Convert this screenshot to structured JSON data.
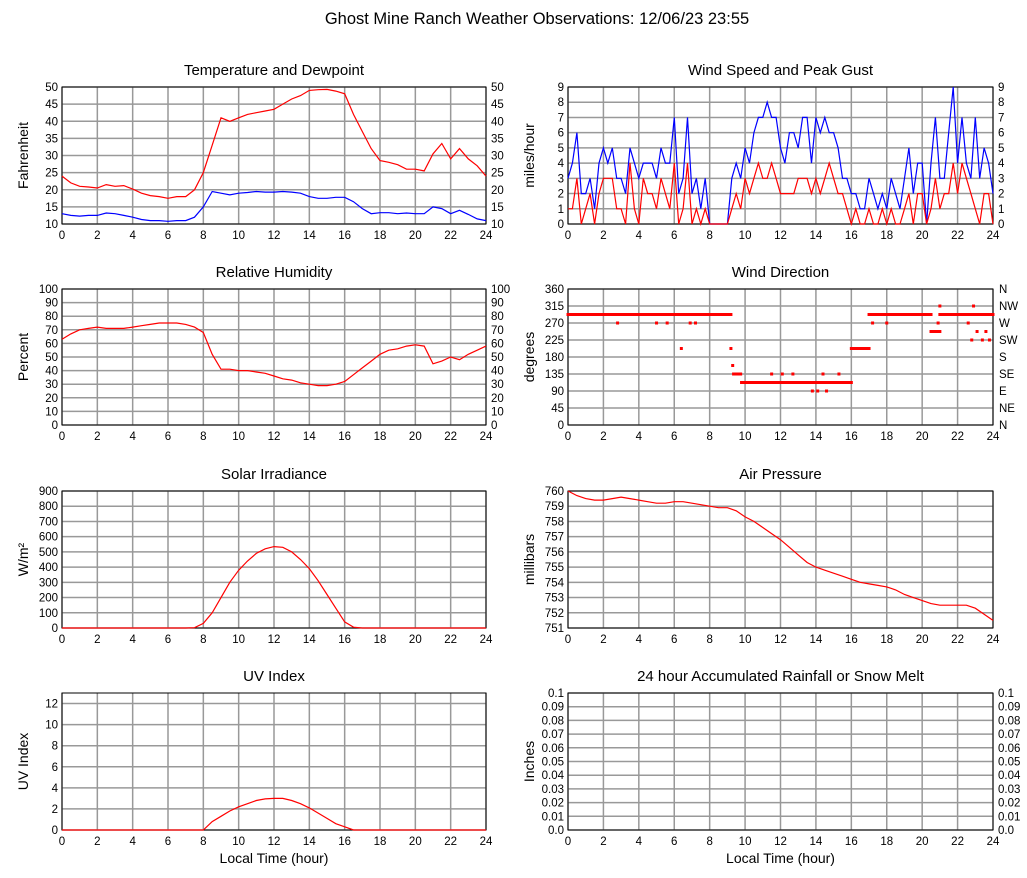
{
  "title": "Ghost Mine Ranch Weather Observations: 12/06/23 23:55",
  "xlabel": "Local Time (hour)",
  "chart_data": [
    {
      "type": "line",
      "title": "Temperature and Dewpoint",
      "ylabel": "Fahrenheit",
      "xlim": [
        0,
        24
      ],
      "xticks": [
        0,
        2,
        4,
        6,
        8,
        10,
        12,
        14,
        16,
        18,
        20,
        22,
        24
      ],
      "ylim": [
        10,
        50
      ],
      "yticks": [
        10,
        15,
        20,
        25,
        30,
        35,
        40,
        45,
        50
      ],
      "right_axis": true,
      "grid": true,
      "series": [
        {
          "name": "Temperature",
          "color": "#ff0000",
          "step": 0.5,
          "values": [
            24,
            22,
            21,
            20.8,
            20.5,
            21.5,
            21,
            21.2,
            20.2,
            19,
            18.3,
            18,
            17.5,
            18,
            18,
            20,
            25,
            33,
            41,
            40,
            41,
            42,
            42.5,
            43,
            43.5,
            45,
            46.5,
            47.5,
            49,
            49.2,
            49.3,
            48.8,
            48,
            42,
            37,
            32,
            28.5,
            28,
            27.3,
            26,
            26,
            25.5,
            30.5,
            33.5,
            29,
            32,
            29,
            27,
            24
          ]
        },
        {
          "name": "Dewpoint",
          "color": "#0000ff",
          "step": 0.5,
          "values": [
            13,
            12.5,
            12.3,
            12.5,
            12.5,
            13.2,
            13,
            12.5,
            12,
            11.3,
            11,
            11,
            10.8,
            11,
            11,
            12,
            15,
            19.5,
            19,
            18.5,
            19,
            19.2,
            19.5,
            19.3,
            19.3,
            19.5,
            19.3,
            19,
            18,
            17.5,
            17.5,
            17.8,
            17.8,
            16.5,
            14.5,
            13,
            13.3,
            13.3,
            13,
            13.2,
            13,
            13,
            15,
            14.5,
            13,
            14,
            12.8,
            11.5,
            11
          ]
        }
      ]
    },
    {
      "type": "line",
      "title": "Wind Speed and Peak Gust",
      "ylabel": "miles/hour",
      "xlim": [
        0,
        24
      ],
      "xticks": [
        0,
        2,
        4,
        6,
        8,
        10,
        12,
        14,
        16,
        18,
        20,
        22,
        24
      ],
      "ylim": [
        0,
        9
      ],
      "yticks": [
        0,
        1,
        2,
        3,
        4,
        5,
        6,
        7,
        8,
        9
      ],
      "right_axis": true,
      "grid": true,
      "series": [
        {
          "name": "Peak Gust",
          "color": "#0000ff",
          "step": 0.25,
          "values": [
            3,
            4,
            6,
            2,
            2,
            3,
            1,
            4,
            5,
            4,
            5,
            3,
            3,
            2,
            5,
            4,
            3,
            4,
            4,
            4,
            3,
            5,
            4,
            4,
            7,
            2,
            3,
            7,
            2,
            3,
            1,
            3,
            0,
            0,
            0,
            0,
            0,
            3,
            4,
            3,
            5,
            4,
            6,
            7,
            7,
            8,
            7,
            7,
            5,
            4,
            6,
            6,
            5,
            7,
            7,
            4,
            7,
            6,
            7,
            6,
            6,
            5,
            3,
            3,
            2,
            2,
            1,
            1,
            3,
            2,
            1,
            2,
            1,
            3,
            2,
            1,
            3,
            5,
            2,
            4,
            4,
            0,
            4,
            7,
            3,
            3,
            6,
            9,
            4,
            7,
            4,
            3,
            7,
            3,
            5,
            4,
            2
          ]
        },
        {
          "name": "Wind Speed",
          "color": "#ff0000",
          "step": 0.25,
          "values": [
            1,
            1,
            3,
            0,
            1,
            2,
            0,
            2,
            3,
            3,
            3,
            1,
            1,
            0,
            4,
            1,
            0,
            3,
            2,
            2,
            1,
            3,
            2,
            1,
            4,
            0,
            1,
            4,
            0,
            1,
            0,
            1,
            0,
            0,
            0,
            0,
            0,
            1,
            2,
            1,
            3,
            2,
            3,
            4,
            3,
            3,
            4,
            3,
            2,
            2,
            2,
            2,
            3,
            3,
            3,
            2,
            3,
            2,
            3,
            4,
            3,
            2,
            2,
            1,
            0,
            1,
            0,
            0,
            1,
            0,
            0,
            1,
            0,
            1,
            0,
            0,
            1,
            2,
            0,
            2,
            2,
            0,
            1,
            3,
            1,
            2,
            2,
            4,
            2,
            4,
            3,
            2,
            1,
            0,
            2,
            2,
            0
          ]
        }
      ]
    },
    {
      "type": "line",
      "title": "Relative Humidity",
      "ylabel": "Percent",
      "xlim": [
        0,
        24
      ],
      "xticks": [
        0,
        2,
        4,
        6,
        8,
        10,
        12,
        14,
        16,
        18,
        20,
        22,
        24
      ],
      "ylim": [
        0,
        100
      ],
      "yticks": [
        0,
        10,
        20,
        30,
        40,
        50,
        60,
        70,
        80,
        90,
        100
      ],
      "right_axis": true,
      "grid": true,
      "series": [
        {
          "name": "Relative Humidity",
          "color": "#ff0000",
          "step": 0.5,
          "values": [
            63,
            67,
            70,
            71,
            72,
            71,
            71,
            71,
            72,
            73,
            74,
            75,
            75,
            75,
            74,
            72,
            68,
            52,
            41,
            41,
            40,
            40,
            39,
            38,
            36,
            34,
            33,
            31,
            30,
            29,
            29,
            30,
            32,
            37,
            42,
            47,
            52,
            55,
            56,
            58,
            59,
            58,
            45,
            47,
            50,
            48,
            52,
            55,
            58
          ]
        }
      ]
    },
    {
      "type": "scatter",
      "title": "Wind Direction",
      "ylabel": "degrees",
      "xlim": [
        0,
        24
      ],
      "xticks": [
        0,
        2,
        4,
        6,
        8,
        10,
        12,
        14,
        16,
        18,
        20,
        22,
        24
      ],
      "ylim": [
        0,
        360
      ],
      "yticks": [
        0,
        45,
        90,
        135,
        180,
        225,
        270,
        315,
        360
      ],
      "right_labels": [
        "N",
        "NE",
        "E",
        "SE",
        "S",
        "SW",
        "W",
        "NW",
        "N"
      ],
      "grid": true,
      "series": [
        {
          "name": "Wind Direction",
          "color": "#ff0000",
          "runs": [
            [
              0,
              9.2,
              292.5
            ],
            [
              9.35,
              9.8,
              135
            ],
            [
              9.8,
              16,
              112.5
            ],
            [
              16,
              17,
              202.5
            ],
            [
              17,
              20.5,
              292.5
            ],
            [
              20.5,
              21,
              247.5
            ],
            [
              21,
              24,
              292.5
            ]
          ],
          "points": [
            [
              2.8,
              270
            ],
            [
              5,
              270
            ],
            [
              5.6,
              270
            ],
            [
              6.4,
              202.5
            ],
            [
              6.9,
              270
            ],
            [
              7.2,
              270
            ],
            [
              9.2,
              202.5
            ],
            [
              9.3,
              157.5
            ],
            [
              11.5,
              135
            ],
            [
              12.1,
              135
            ],
            [
              12.7,
              135
            ],
            [
              13.8,
              90
            ],
            [
              14.1,
              90
            ],
            [
              14.4,
              135
            ],
            [
              14.6,
              90
            ],
            [
              15.3,
              135
            ],
            [
              17.2,
              270
            ],
            [
              18,
              270
            ],
            [
              20.9,
              270
            ],
            [
              21,
              315
            ],
            [
              22.6,
              270
            ],
            [
              22.8,
              225
            ],
            [
              22.9,
              315
            ],
            [
              23.1,
              247.5
            ],
            [
              23.4,
              225
            ],
            [
              23.6,
              247.5
            ],
            [
              23.8,
              225
            ]
          ]
        }
      ]
    },
    {
      "type": "line",
      "title": "Solar Irradiance",
      "ylabel": "W/m²",
      "xlim": [
        0,
        24
      ],
      "xticks": [
        0,
        2,
        4,
        6,
        8,
        10,
        12,
        14,
        16,
        18,
        20,
        22,
        24
      ],
      "ylim": [
        0,
        900
      ],
      "yticks": [
        0,
        100,
        200,
        300,
        400,
        500,
        600,
        700,
        800,
        900
      ],
      "right_axis": false,
      "grid": true,
      "series": [
        {
          "name": "Solar Irradiance",
          "color": "#ff0000",
          "step": 0.5,
          "values": [
            0,
            0,
            0,
            0,
            0,
            0,
            0,
            0,
            0,
            0,
            0,
            0,
            0,
            0,
            0,
            2,
            30,
            100,
            200,
            300,
            380,
            440,
            490,
            520,
            535,
            530,
            500,
            450,
            390,
            310,
            220,
            130,
            40,
            5,
            0,
            0,
            0,
            0,
            0,
            0,
            0,
            0,
            0,
            0,
            0,
            0,
            0,
            0,
            0
          ]
        }
      ]
    },
    {
      "type": "line",
      "title": "Air Pressure",
      "ylabel": "millibars",
      "xlim": [
        0,
        24
      ],
      "xticks": [
        0,
        2,
        4,
        6,
        8,
        10,
        12,
        14,
        16,
        18,
        20,
        22,
        24
      ],
      "ylim": [
        751,
        760
      ],
      "yticks": [
        751,
        752,
        753,
        754,
        755,
        756,
        757,
        758,
        759,
        760
      ],
      "right_axis": false,
      "grid": true,
      "series": [
        {
          "name": "Air Pressure",
          "color": "#ff0000",
          "step": 0.5,
          "values": [
            760,
            759.7,
            759.5,
            759.4,
            759.4,
            759.5,
            759.6,
            759.5,
            759.4,
            759.3,
            759.2,
            759.2,
            759.3,
            759.3,
            759.2,
            759.1,
            759.0,
            758.9,
            758.9,
            758.7,
            758.3,
            758.0,
            757.6,
            757.2,
            756.8,
            756.3,
            755.8,
            755.3,
            755,
            754.8,
            754.6,
            754.4,
            754.2,
            754.0,
            753.9,
            753.8,
            753.7,
            753.5,
            753.2,
            753.0,
            752.8,
            752.6,
            752.5,
            752.5,
            752.5,
            752.5,
            752.3,
            751.9,
            751.5
          ]
        }
      ]
    },
    {
      "type": "line",
      "title": "UV Index",
      "ylabel": "UV Index",
      "xlim": [
        0,
        24
      ],
      "xticks": [
        0,
        2,
        4,
        6,
        8,
        10,
        12,
        14,
        16,
        18,
        20,
        22,
        24
      ],
      "ylim": [
        0,
        13
      ],
      "yticks": [
        0,
        2,
        4,
        6,
        8,
        10,
        12
      ],
      "right_axis": false,
      "grid": true,
      "series": [
        {
          "name": "UV Index",
          "color": "#ff0000",
          "step": 0.5,
          "values": [
            0,
            0,
            0,
            0,
            0,
            0,
            0,
            0,
            0,
            0,
            0,
            0,
            0,
            0,
            0,
            0,
            0,
            0.8,
            1.3,
            1.8,
            2.2,
            2.5,
            2.8,
            2.95,
            3,
            3,
            2.8,
            2.5,
            2.1,
            1.6,
            1.1,
            0.6,
            0.3,
            0,
            0,
            0,
            0,
            0,
            0,
            0,
            0,
            0,
            0,
            0,
            0,
            0,
            0,
            0,
            0
          ]
        }
      ]
    },
    {
      "type": "line",
      "title": "24 hour Accumulated Rainfall or Snow Melt",
      "ylabel": "Inches",
      "xlim": [
        0,
        24
      ],
      "xticks": [
        0,
        2,
        4,
        6,
        8,
        10,
        12,
        14,
        16,
        18,
        20,
        22,
        24
      ],
      "ylim": [
        0,
        0.1
      ],
      "yticks": [
        0,
        0.01,
        0.02,
        0.03,
        0.04,
        0.05,
        0.06,
        0.07,
        0.08,
        0.09,
        0.1
      ],
      "ytick_labels": [
        "0.0",
        "0.01",
        "0.02",
        "0.03",
        "0.04",
        "0.05",
        "0.06",
        "0.07",
        "0.08",
        "0.09",
        "0.1"
      ],
      "right_axis": true,
      "grid": true,
      "series": []
    }
  ]
}
